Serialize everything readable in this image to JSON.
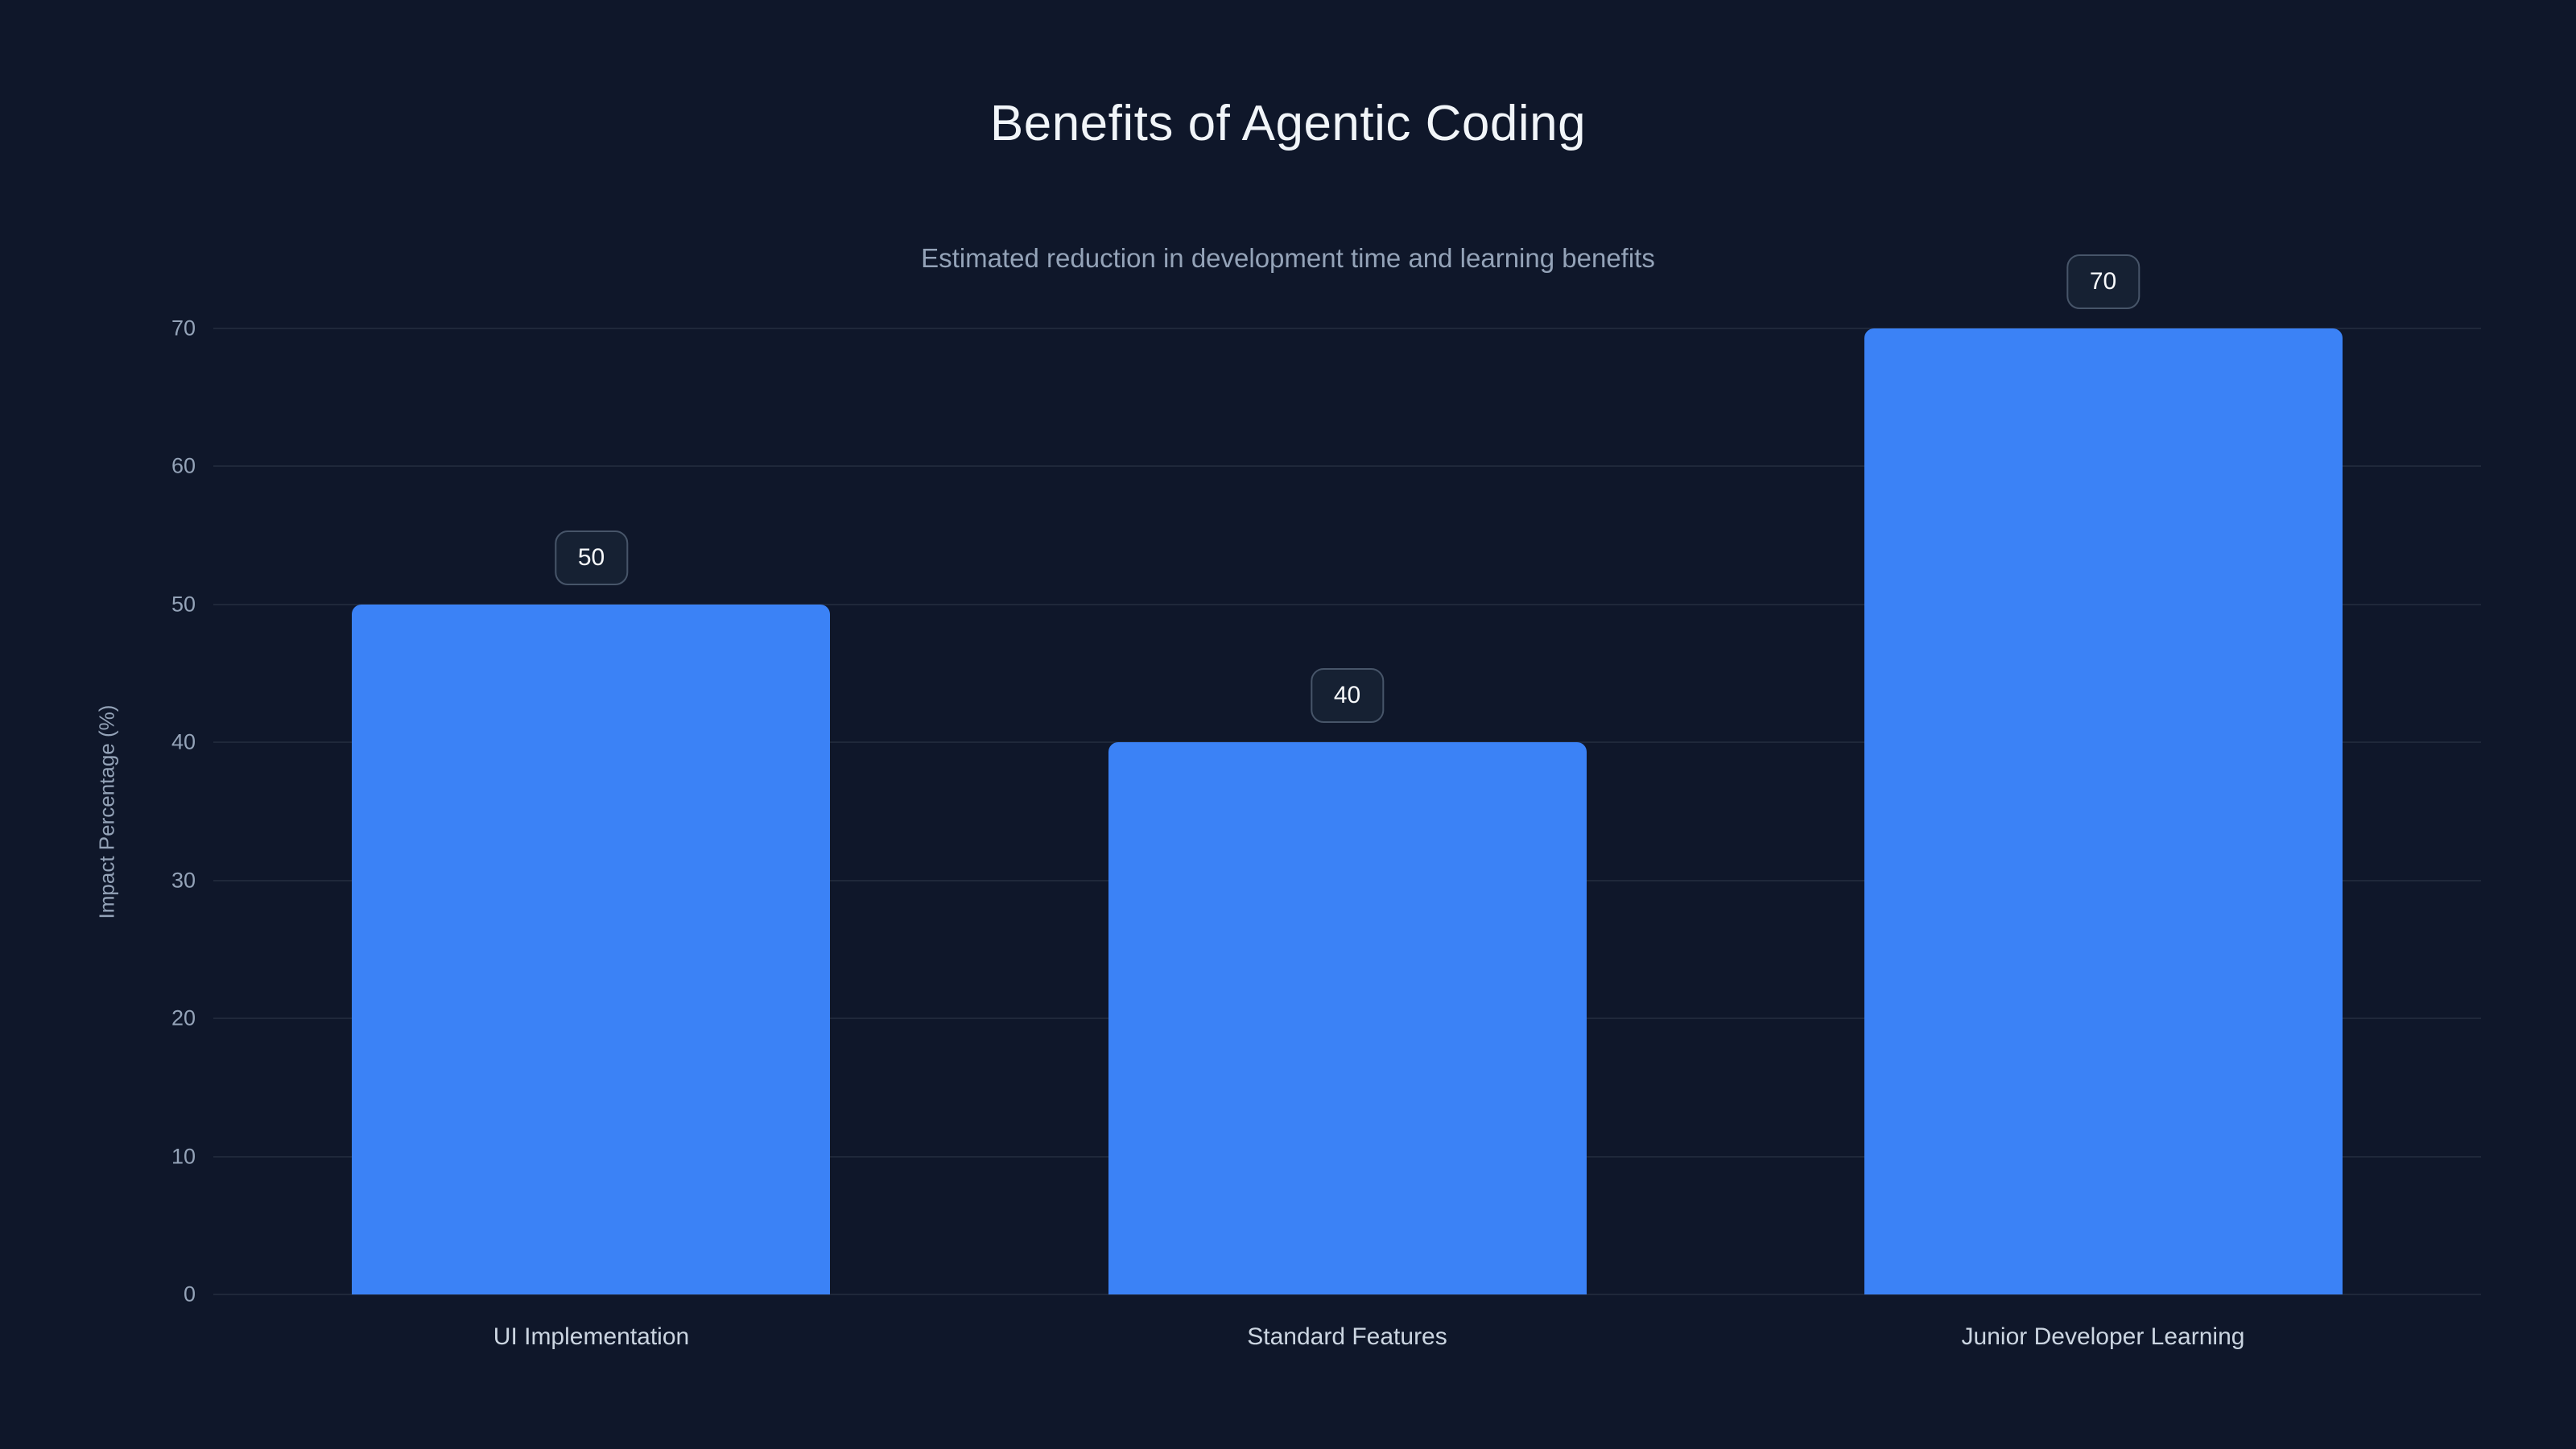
{
  "chart_data": {
    "type": "bar",
    "title": "Benefits of Agentic Coding",
    "subtitle": "Estimated reduction in development time and learning benefits",
    "categories": [
      "UI Implementation",
      "Standard Features",
      "Junior Developer Learning"
    ],
    "values": [
      50,
      40,
      70
    ],
    "value_labels": [
      "50",
      "40",
      "70"
    ],
    "xlabel": "",
    "ylabel": "Impact Percentage (%)",
    "yticks": [
      0,
      10,
      20,
      30,
      40,
      50,
      60,
      70
    ],
    "ylim": [
      0,
      70
    ],
    "grid": "horizontal",
    "legend": "none",
    "bar_color": "#3b82f6",
    "background_color": "#0f172a",
    "badge_border_color": "#475569",
    "text_color": "#f1f5f9",
    "muted_text_color": "#94a3b8"
  }
}
